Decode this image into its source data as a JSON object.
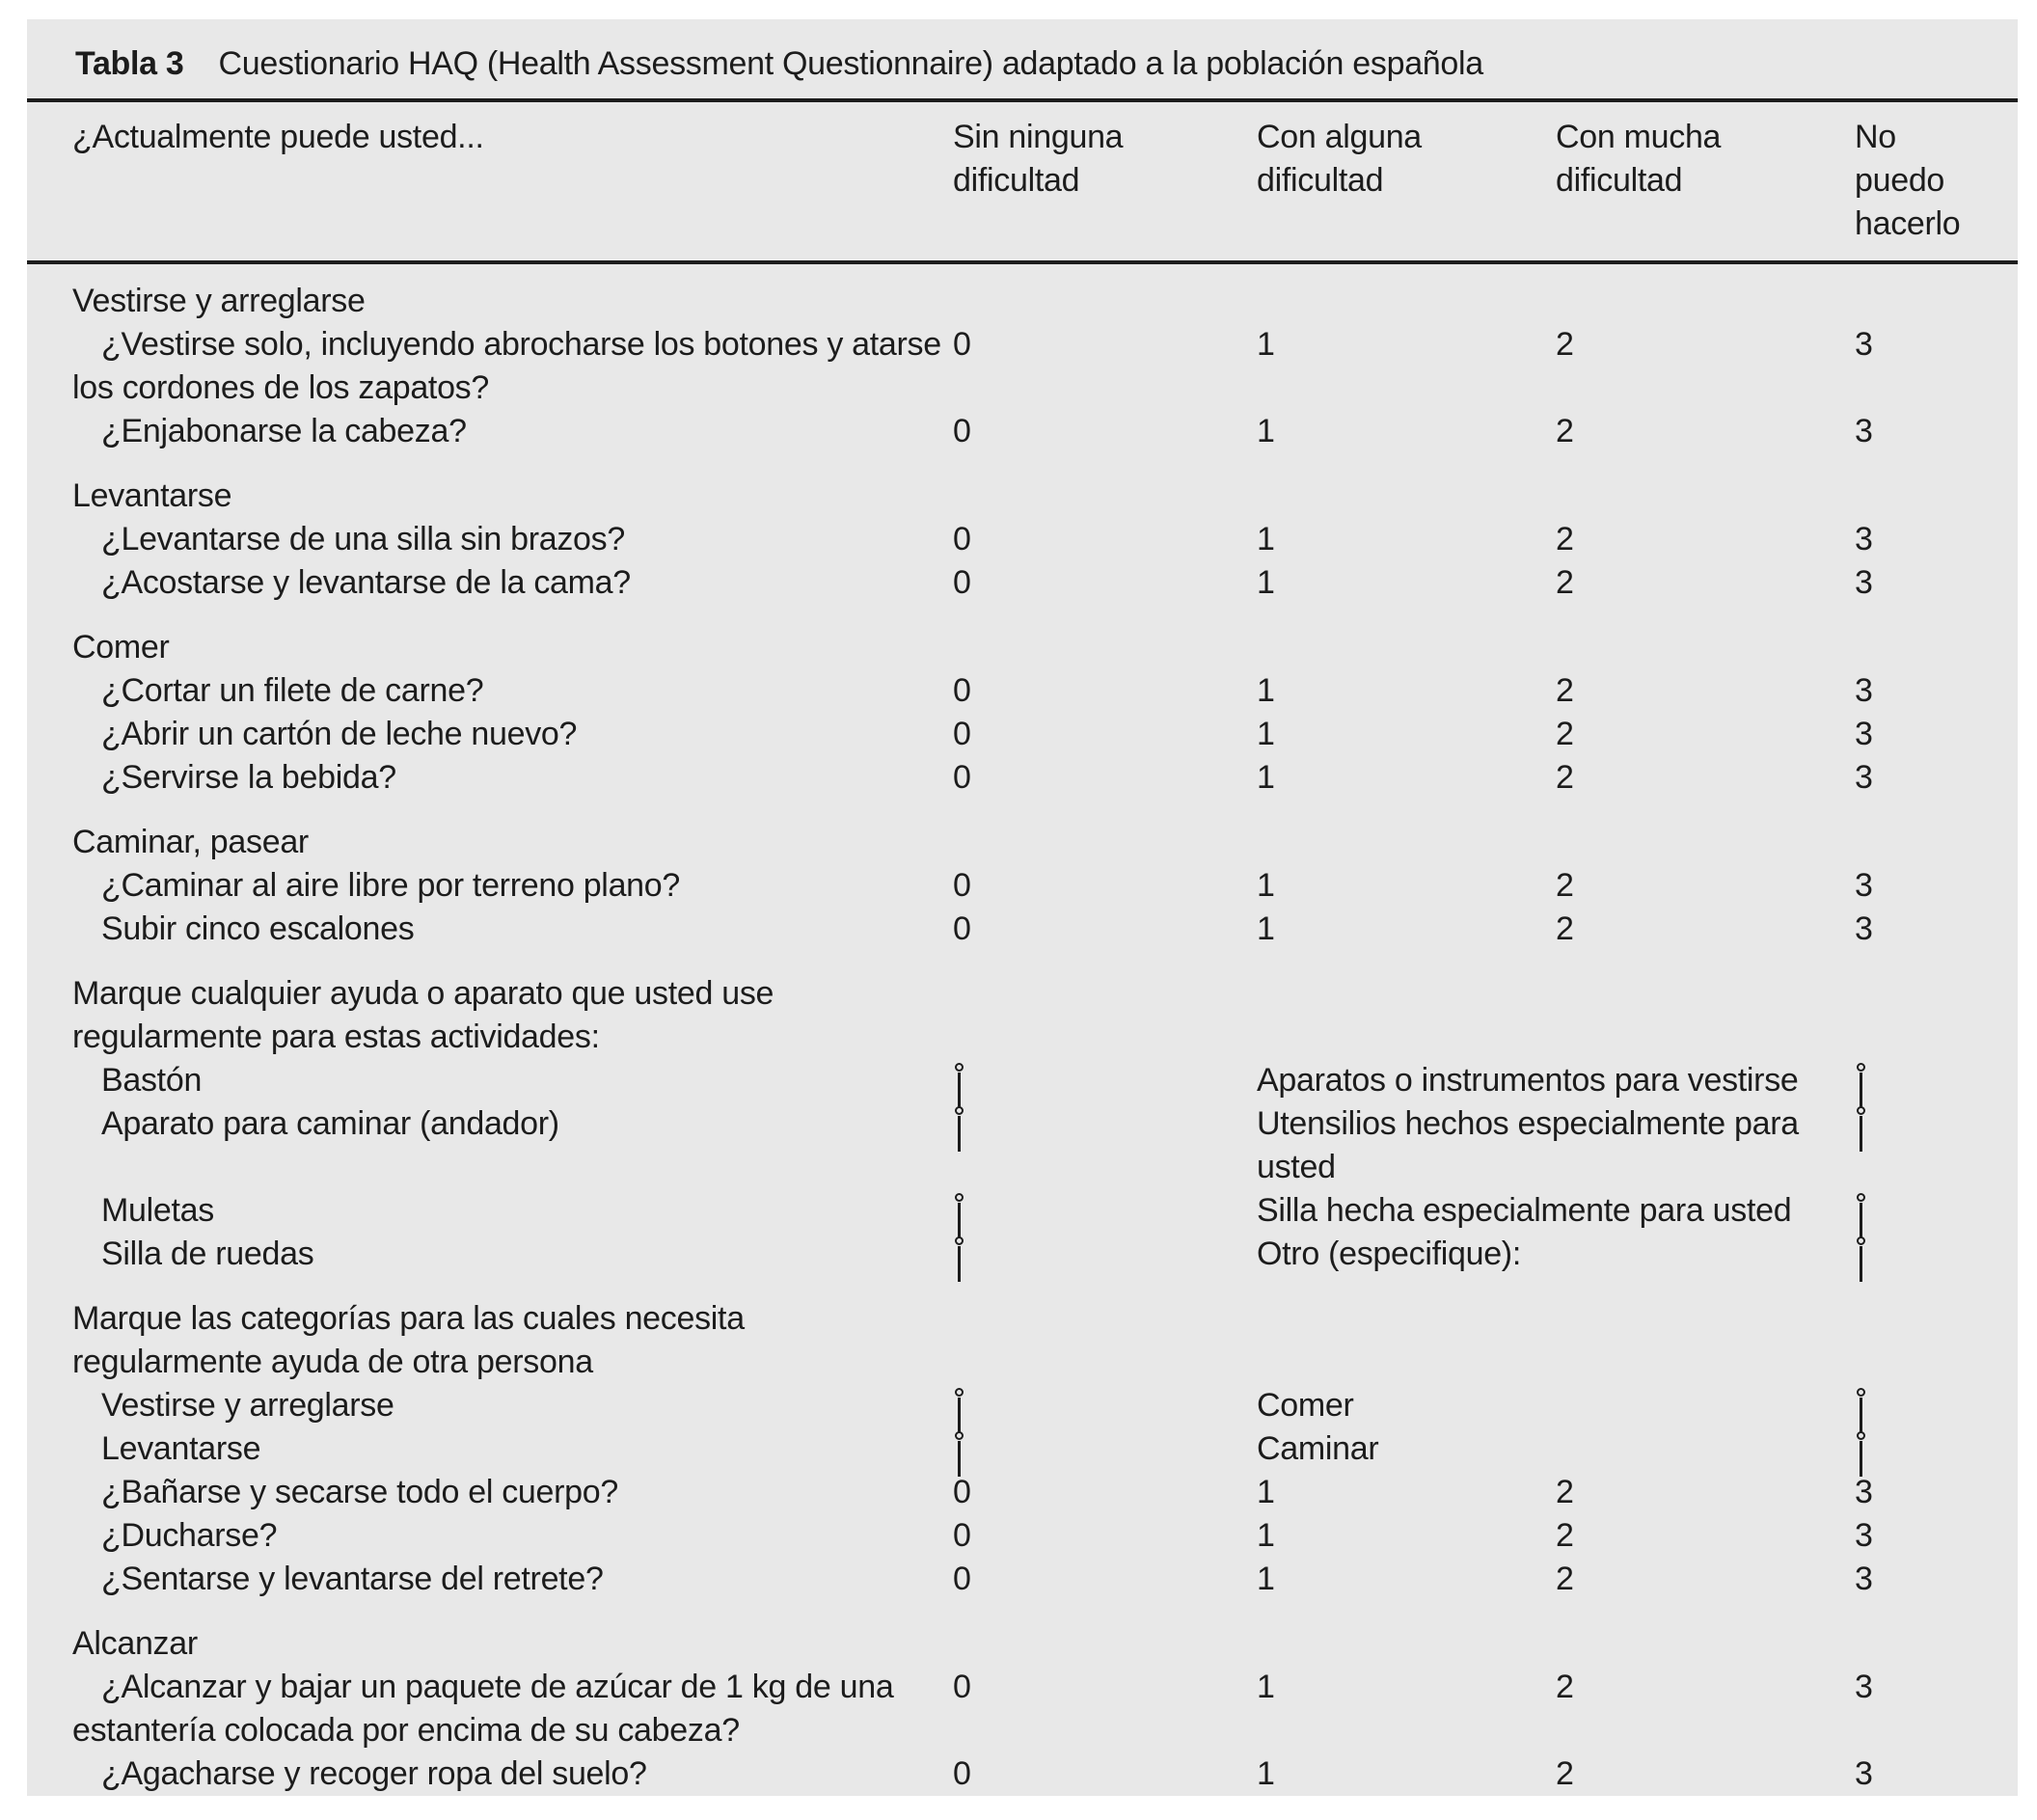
{
  "colors": {
    "panel_bg": "#e8e8e8",
    "text": "#1c1c1c",
    "rule": "#1d1d1d"
  },
  "title": {
    "tag": "Tabla 3",
    "text": "Cuestionario HAQ (Health Assessment Questionnaire) adaptado a la población española"
  },
  "header": {
    "question_col": "¿Actualmente puede usted...",
    "options": [
      "Sin ninguna dificultad",
      "Con alguna dificultad",
      "Con mucha dificultad",
      "No puedo hacerlo"
    ]
  },
  "checkbox_icon": "pin-checkbox",
  "rows": [
    {
      "type": "section",
      "text": "Vestirse y arreglarse"
    },
    {
      "type": "question",
      "lines": [
        "¿Vestirse solo, incluyendo abrocharse los botones y atarse",
        "los cordones de los zapatos?"
      ],
      "values": [
        "0",
        "1",
        "2",
        "3"
      ]
    },
    {
      "type": "question",
      "lines": [
        "¿Enjabonarse la cabeza?"
      ],
      "values": [
        "0",
        "1",
        "2",
        "3"
      ]
    },
    {
      "type": "section",
      "text": "Levantarse"
    },
    {
      "type": "question",
      "lines": [
        "¿Levantarse de una silla sin brazos?"
      ],
      "values": [
        "0",
        "1",
        "2",
        "3"
      ]
    },
    {
      "type": "question",
      "lines": [
        "¿Acostarse y levantarse de la cama?"
      ],
      "values": [
        "0",
        "1",
        "2",
        "3"
      ]
    },
    {
      "type": "section",
      "text": "Comer"
    },
    {
      "type": "question",
      "lines": [
        "¿Cortar un filete de carne?"
      ],
      "values": [
        "0",
        "1",
        "2",
        "3"
      ]
    },
    {
      "type": "question",
      "lines": [
        "¿Abrir un cartón de leche nuevo?"
      ],
      "values": [
        "0",
        "1",
        "2",
        "3"
      ]
    },
    {
      "type": "question",
      "lines": [
        "¿Servirse la bebida?"
      ],
      "values": [
        "0",
        "1",
        "2",
        "3"
      ]
    },
    {
      "type": "section",
      "text": "Caminar, pasear"
    },
    {
      "type": "question",
      "lines": [
        "¿Caminar al aire libre por terreno plano?"
      ],
      "values": [
        "0",
        "1",
        "2",
        "3"
      ]
    },
    {
      "type": "question",
      "lines": [
        "Subir cinco escalones"
      ],
      "values": [
        "0",
        "1",
        "2",
        "3"
      ]
    },
    {
      "type": "note",
      "lines": [
        "Marque cualquier ayuda o aparato que usted use",
        "regularmente para estas actividades:"
      ]
    },
    {
      "type": "check",
      "left": "Bastón",
      "right": {
        "lines": [
          "Aparatos o instrumentos para vestirse"
        ]
      }
    },
    {
      "type": "check",
      "left": "Aparato para caminar (andador)",
      "right": {
        "lines": [
          "Utensilios hechos especialmente para",
          "usted"
        ]
      }
    },
    {
      "type": "check",
      "left": "Muletas",
      "right": {
        "lines": [
          "Silla hecha especialmente para usted"
        ]
      }
    },
    {
      "type": "check",
      "left": "Silla de ruedas",
      "right": {
        "lines": [
          "Otro (especifique):"
        ]
      }
    },
    {
      "type": "note",
      "lines": [
        "Marque las categorías para las cuales necesita",
        "regularmente ayuda de otra persona"
      ]
    },
    {
      "type": "check",
      "left": "Vestirse y arreglarse",
      "right": {
        "lines": [
          "Comer"
        ]
      }
    },
    {
      "type": "check",
      "left": "Levantarse",
      "right": {
        "lines": [
          "Caminar"
        ]
      }
    },
    {
      "type": "question",
      "lines": [
        "¿Bañarse y secarse todo el cuerpo?"
      ],
      "values": [
        "0",
        "1",
        "2",
        "3"
      ]
    },
    {
      "type": "question",
      "lines": [
        "¿Ducharse?"
      ],
      "values": [
        "0",
        "1",
        "2",
        "3"
      ]
    },
    {
      "type": "question",
      "lines": [
        "¿Sentarse y levantarse del retrete?"
      ],
      "values": [
        "0",
        "1",
        "2",
        "3"
      ]
    },
    {
      "type": "section",
      "text": "Alcanzar"
    },
    {
      "type": "question",
      "lines": [
        "¿Alcanzar y bajar un paquete de azúcar de 1 kg de una",
        "estantería colocada por encima de su cabeza?"
      ],
      "values": [
        "0",
        "1",
        "2",
        "3"
      ]
    },
    {
      "type": "question",
      "lines": [
        "¿Agacharse y recoger ropa del suelo?"
      ],
      "values": [
        "0",
        "1",
        "2",
        "3"
      ]
    }
  ]
}
